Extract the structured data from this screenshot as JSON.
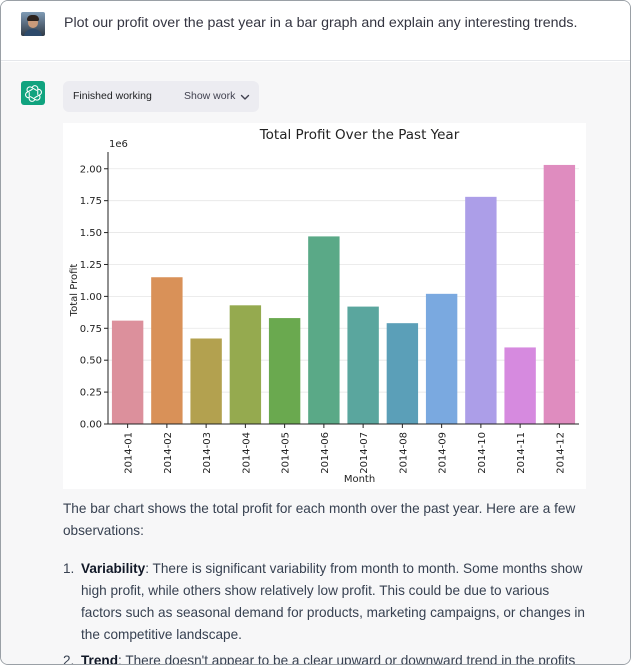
{
  "user_message": {
    "text": "Plot our profit over the past year in a bar graph and explain any interesting trends."
  },
  "assistant": {
    "status_label": "Finished working",
    "show_work_label": "Show work",
    "intro": "The bar chart shows the total profit for each month over the past year. Here are a few observations:",
    "observations": [
      {
        "number": "1.",
        "title": "Variability",
        "text": ": There is significant variability from month to month. Some months show high profit, while others show relatively low profit. This could be due to various factors such as seasonal demand for products, marketing campaigns, or changes in the competitive landscape."
      },
      {
        "number": "2.",
        "title": "Trend",
        "text": ": There doesn't appear to be a clear upward or downward trend in the profits over"
      }
    ]
  },
  "icons": {
    "user_avatar": "user-avatar",
    "assistant_avatar": "openai-logo-icon",
    "show_work": "chevron-down-icon"
  },
  "colors": {
    "assistant_bg": "#f7f7f8",
    "assistant_avatar_bg": "#10a37f",
    "pill_bg": "#ececf1"
  },
  "chart_data": {
    "type": "bar",
    "title": "Total Profit Over the Past Year",
    "xlabel": "Month",
    "ylabel": "Total Profit",
    "y_offset_label": "1e6",
    "ylim": [
      0,
      2.1
    ],
    "yticks": [
      "0.00",
      "0.25",
      "0.50",
      "0.75",
      "1.00",
      "1.25",
      "1.50",
      "1.75",
      "2.00"
    ],
    "ytick_values": [
      0,
      0.25,
      0.5,
      0.75,
      1.0,
      1.25,
      1.5,
      1.75,
      2.0
    ],
    "grid": true,
    "categories": [
      "2014-01",
      "2014-02",
      "2014-03",
      "2014-04",
      "2014-05",
      "2014-06",
      "2014-07",
      "2014-08",
      "2014-09",
      "2014-10",
      "2014-11",
      "2014-12"
    ],
    "values": [
      0.81,
      1.15,
      0.67,
      0.93,
      0.83,
      1.47,
      0.92,
      0.79,
      1.02,
      1.78,
      0.6,
      2.03
    ],
    "colors": [
      "#dc909c",
      "#d99158",
      "#b3a14f",
      "#95aa4f",
      "#6aa94f",
      "#5aa987",
      "#5aa69e",
      "#5b9fb8",
      "#7aa9e0",
      "#ac9ee8",
      "#d68adf",
      "#df8cbf"
    ]
  }
}
